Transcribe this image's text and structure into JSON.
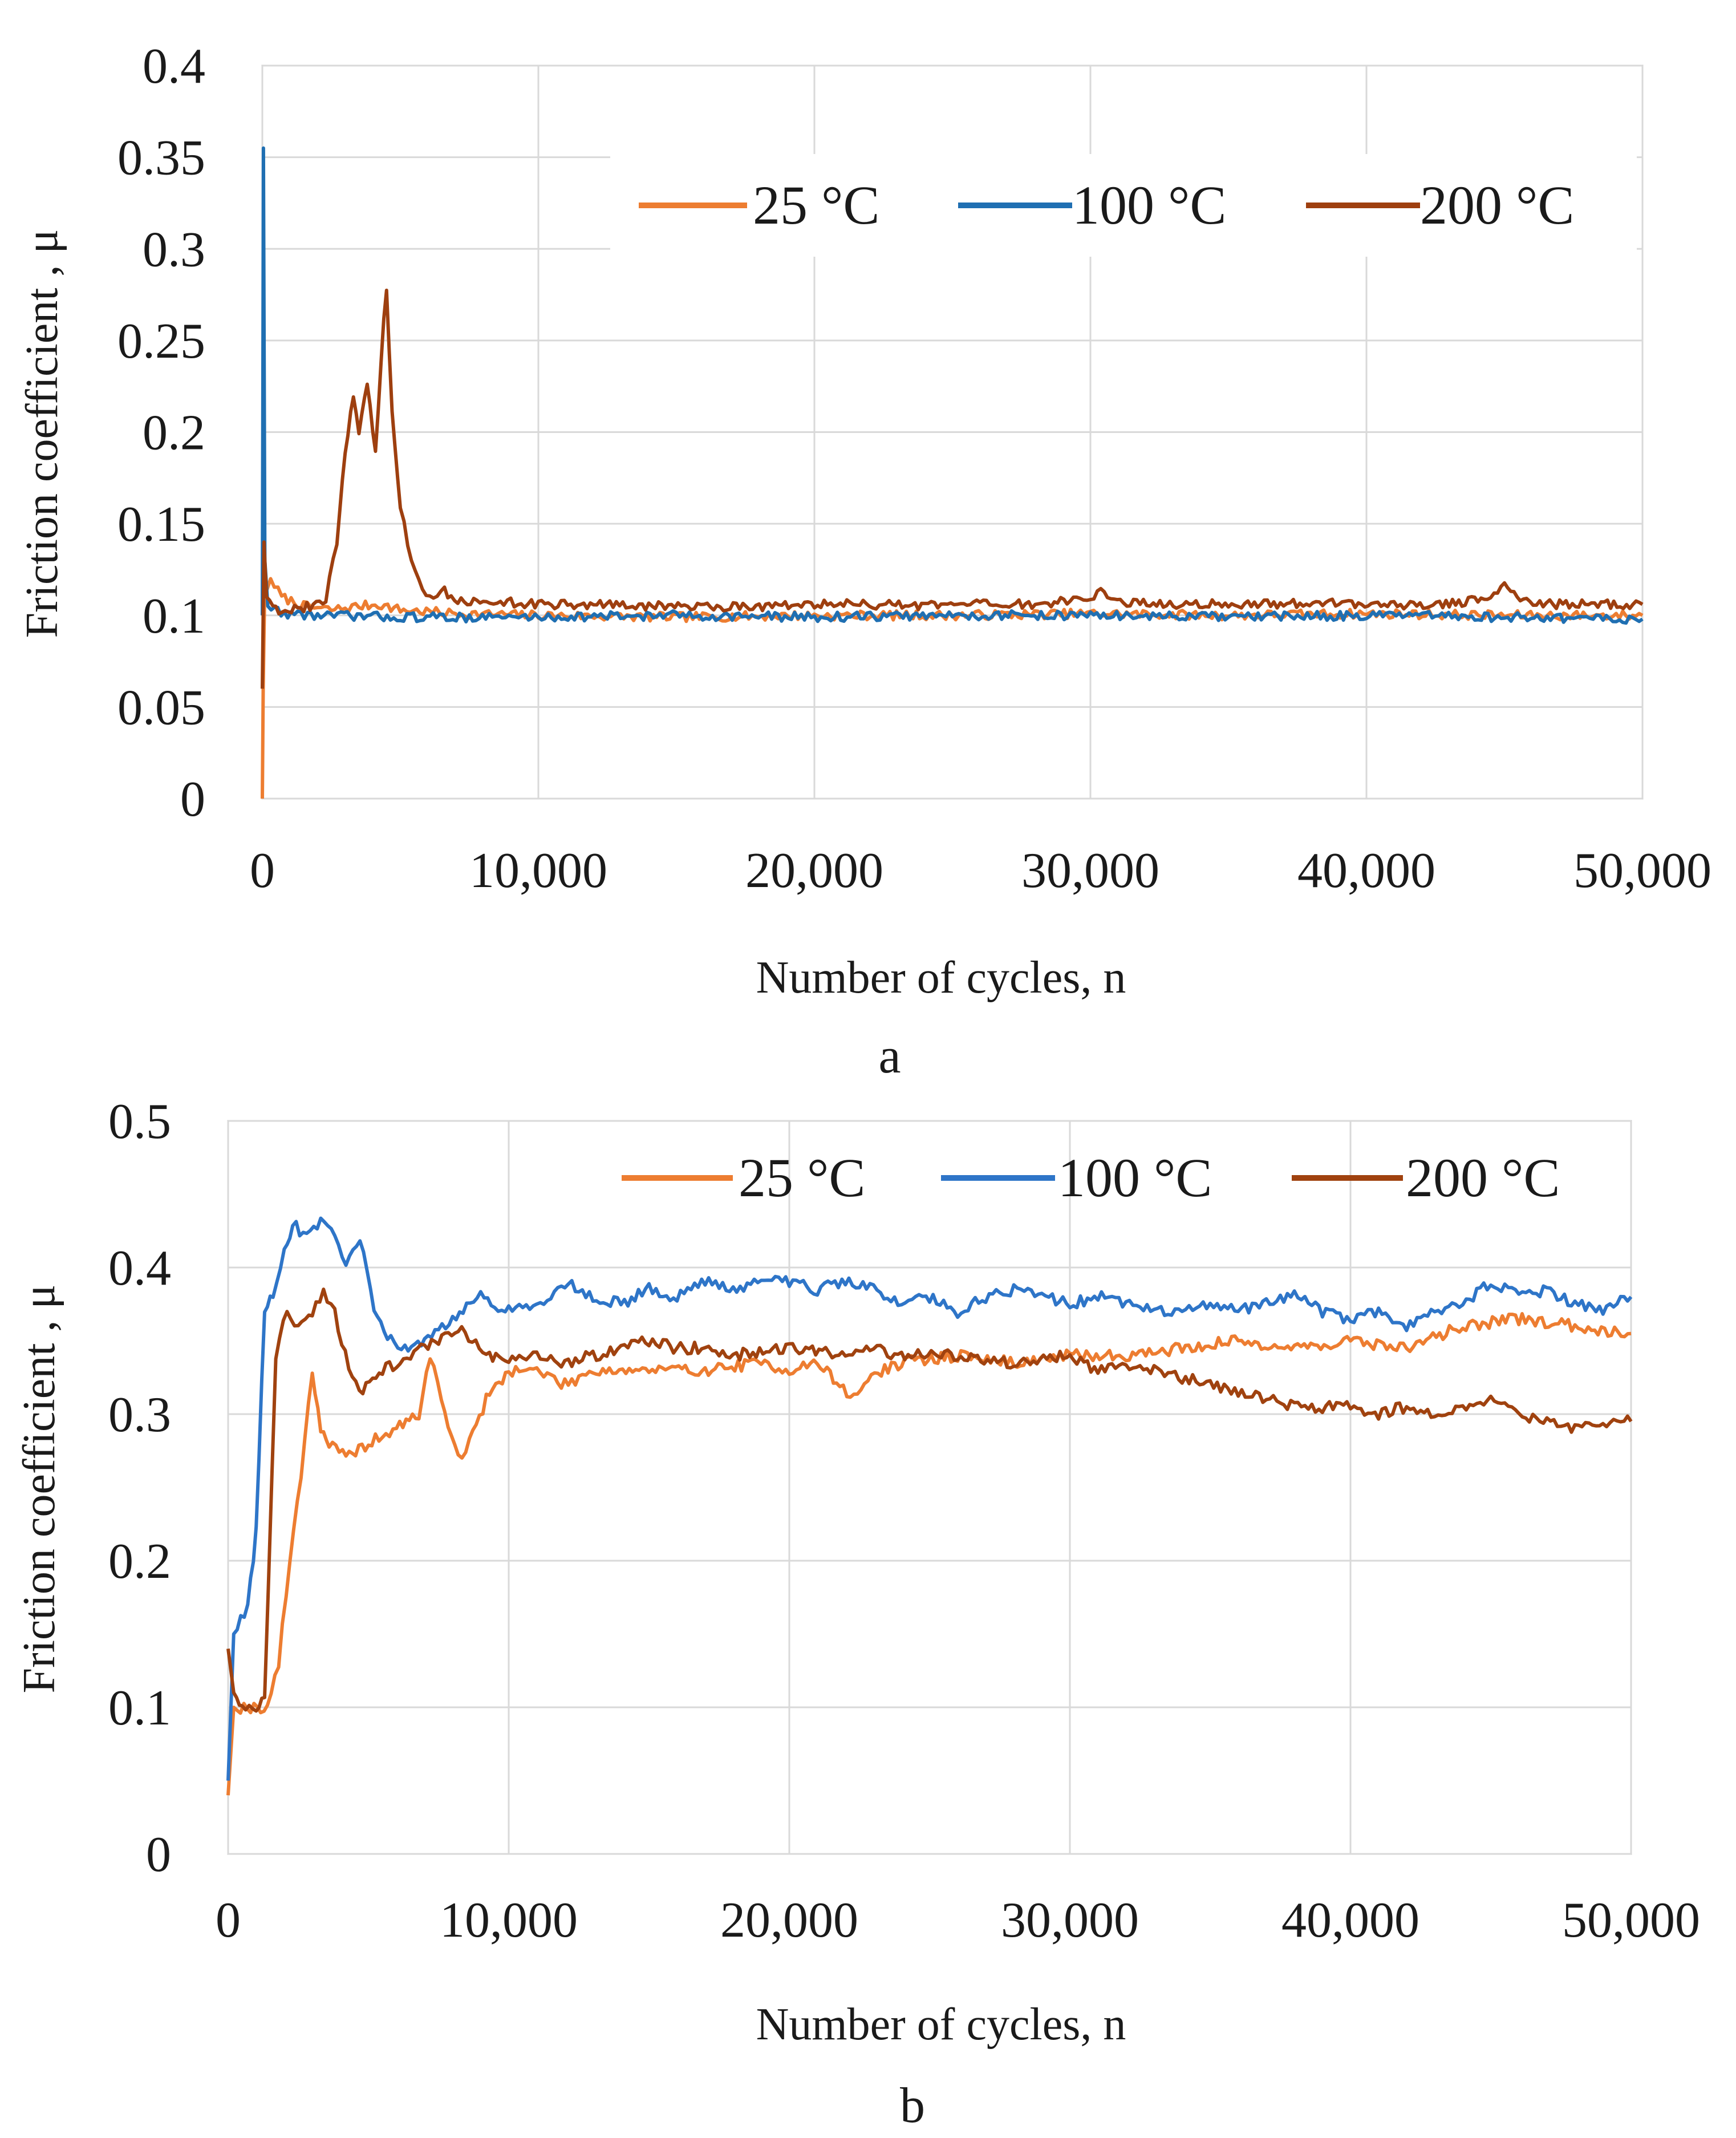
{
  "chart_data": [
    {
      "panel_label": "a",
      "type": "line",
      "xlabel": "Number of cycles, n",
      "ylabel": "Friction coefficient , μ",
      "xlim": [
        0,
        50000
      ],
      "ylim": [
        0,
        0.4
      ],
      "grid": true,
      "legend_position": "top-right",
      "x_ticks": [
        0,
        10000,
        20000,
        30000,
        40000,
        50000
      ],
      "x_tick_labels": [
        "0",
        "10,000",
        "20,000",
        "30,000",
        "40,000",
        "50,000"
      ],
      "y_ticks": [
        0,
        0.05,
        0.1,
        0.15,
        0.2,
        0.25,
        0.3,
        0.35,
        0.4
      ],
      "y_tick_labels": [
        "0",
        "0.05",
        "0.1",
        "0.15",
        "0.2",
        "0.25",
        "0.3",
        "0.35",
        "0.4"
      ],
      "series": [
        {
          "name": "25 °C",
          "color": "#ED7D31",
          "points": [
            [
              0,
              0.0
            ],
            [
              30,
              0.06
            ],
            [
              80,
              0.11
            ],
            [
              300,
              0.12
            ],
            [
              700,
              0.11
            ],
            [
              1500,
              0.105
            ],
            [
              2500,
              0.103
            ],
            [
              3500,
              0.105
            ],
            [
              4200,
              0.106
            ],
            [
              5000,
              0.103
            ],
            [
              7000,
              0.101
            ],
            [
              10000,
              0.1
            ],
            [
              15000,
              0.099
            ],
            [
              20000,
              0.1
            ],
            [
              25000,
              0.1
            ],
            [
              30000,
              0.101
            ],
            [
              35000,
              0.1
            ],
            [
              40000,
              0.101
            ],
            [
              45000,
              0.1
            ],
            [
              50000,
              0.1
            ]
          ]
        },
        {
          "name": "100 °C",
          "color": "#1F6FB2",
          "points": [
            [
              0,
              0.1
            ],
            [
              40,
              0.355
            ],
            [
              90,
              0.13
            ],
            [
              200,
              0.105
            ],
            [
              800,
              0.101
            ],
            [
              2000,
              0.1
            ],
            [
              5000,
              0.099
            ],
            [
              10000,
              0.099
            ],
            [
              15000,
              0.1
            ],
            [
              20000,
              0.099
            ],
            [
              25000,
              0.1
            ],
            [
              30000,
              0.1
            ],
            [
              35000,
              0.099
            ],
            [
              40000,
              0.1
            ],
            [
              45000,
              0.099
            ],
            [
              50000,
              0.098
            ]
          ]
        },
        {
          "name": "200 °C",
          "color": "#9E3F0F",
          "points": [
            [
              0,
              0.06
            ],
            [
              60,
              0.14
            ],
            [
              150,
              0.11
            ],
            [
              600,
              0.103
            ],
            [
              1500,
              0.104
            ],
            [
              2300,
              0.108
            ],
            [
              2700,
              0.14
            ],
            [
              3000,
              0.19
            ],
            [
              3300,
              0.22
            ],
            [
              3500,
              0.2
            ],
            [
              3800,
              0.225
            ],
            [
              4100,
              0.19
            ],
            [
              4400,
              0.26
            ],
            [
              4500,
              0.275
            ],
            [
              4700,
              0.21
            ],
            [
              5000,
              0.16
            ],
            [
              5400,
              0.13
            ],
            [
              5800,
              0.112
            ],
            [
              6200,
              0.11
            ],
            [
              6600,
              0.113
            ],
            [
              7200,
              0.108
            ],
            [
              8000,
              0.107
            ],
            [
              9000,
              0.107
            ],
            [
              10000,
              0.106
            ],
            [
              12000,
              0.106
            ],
            [
              14000,
              0.105
            ],
            [
              16000,
              0.105
            ],
            [
              18000,
              0.105
            ],
            [
              20000,
              0.106
            ],
            [
              22000,
              0.106
            ],
            [
              24000,
              0.105
            ],
            [
              26000,
              0.106
            ],
            [
              28000,
              0.106
            ],
            [
              29500,
              0.108
            ],
            [
              30500,
              0.113
            ],
            [
              31200,
              0.107
            ],
            [
              33000,
              0.106
            ],
            [
              35000,
              0.106
            ],
            [
              37000,
              0.106
            ],
            [
              39000,
              0.107
            ],
            [
              41000,
              0.106
            ],
            [
              43000,
              0.106
            ],
            [
              44500,
              0.11
            ],
            [
              45000,
              0.116
            ],
            [
              45800,
              0.108
            ],
            [
              47000,
              0.106
            ],
            [
              48500,
              0.106
            ],
            [
              50000,
              0.106
            ]
          ]
        }
      ]
    },
    {
      "panel_label": "b",
      "type": "line",
      "xlabel": "Number of cycles, n",
      "ylabel": "Friction coefficient , μ",
      "xlim": [
        0,
        50000
      ],
      "ylim": [
        0,
        0.5
      ],
      "grid": true,
      "legend_position": "top-right",
      "x_ticks": [
        0,
        10000,
        20000,
        30000,
        40000,
        50000
      ],
      "x_tick_labels": [
        "0",
        "10,000",
        "20,000",
        "30,000",
        "40,000",
        "50,000"
      ],
      "y_ticks": [
        0,
        0.1,
        0.2,
        0.3,
        0.4,
        0.5
      ],
      "y_tick_labels": [
        "0",
        "0.1",
        "0.2",
        "0.3",
        "0.4",
        "0.5"
      ],
      "series": [
        {
          "name": "25 °C",
          "color": "#ED7D31",
          "points": [
            [
              0,
              0.04
            ],
            [
              200,
              0.1
            ],
            [
              800,
              0.1
            ],
            [
              1400,
              0.1
            ],
            [
              1800,
              0.13
            ],
            [
              2200,
              0.2
            ],
            [
              2600,
              0.26
            ],
            [
              3000,
              0.33
            ],
            [
              3300,
              0.29
            ],
            [
              3600,
              0.28
            ],
            [
              4200,
              0.27
            ],
            [
              5000,
              0.28
            ],
            [
              6000,
              0.29
            ],
            [
              6800,
              0.3
            ],
            [
              7200,
              0.34
            ],
            [
              7600,
              0.31
            ],
            [
              8200,
              0.27
            ],
            [
              8600,
              0.28
            ],
            [
              9200,
              0.31
            ],
            [
              10000,
              0.33
            ],
            [
              11000,
              0.33
            ],
            [
              12000,
              0.32
            ],
            [
              13000,
              0.33
            ],
            [
              15000,
              0.33
            ],
            [
              17000,
              0.33
            ],
            [
              19000,
              0.335
            ],
            [
              20000,
              0.33
            ],
            [
              21000,
              0.335
            ],
            [
              21800,
              0.32
            ],
            [
              22300,
              0.31
            ],
            [
              22800,
              0.325
            ],
            [
              24000,
              0.335
            ],
            [
              26000,
              0.34
            ],
            [
              28000,
              0.335
            ],
            [
              30000,
              0.34
            ],
            [
              32000,
              0.34
            ],
            [
              34000,
              0.345
            ],
            [
              36000,
              0.35
            ],
            [
              38000,
              0.345
            ],
            [
              40000,
              0.35
            ],
            [
              42000,
              0.345
            ],
            [
              44000,
              0.36
            ],
            [
              46000,
              0.365
            ],
            [
              48000,
              0.36
            ],
            [
              50000,
              0.355
            ]
          ]
        },
        {
          "name": "100 °C",
          "color": "#2E75C8",
          "points": [
            [
              0,
              0.05
            ],
            [
              200,
              0.15
            ],
            [
              700,
              0.17
            ],
            [
              1000,
              0.22
            ],
            [
              1300,
              0.37
            ],
            [
              1600,
              0.38
            ],
            [
              2000,
              0.41
            ],
            [
              2300,
              0.43
            ],
            [
              2800,
              0.42
            ],
            [
              3300,
              0.43
            ],
            [
              3800,
              0.42
            ],
            [
              4200,
              0.4
            ],
            [
              4700,
              0.42
            ],
            [
              5200,
              0.37
            ],
            [
              5800,
              0.35
            ],
            [
              6300,
              0.345
            ],
            [
              7000,
              0.35
            ],
            [
              8000,
              0.365
            ],
            [
              9000,
              0.38
            ],
            [
              10000,
              0.37
            ],
            [
              11000,
              0.375
            ],
            [
              12000,
              0.39
            ],
            [
              13000,
              0.38
            ],
            [
              14000,
              0.375
            ],
            [
              15000,
              0.385
            ],
            [
              16000,
              0.38
            ],
            [
              17000,
              0.39
            ],
            [
              18000,
              0.385
            ],
            [
              19000,
              0.39
            ],
            [
              20000,
              0.39
            ],
            [
              21000,
              0.385
            ],
            [
              22000,
              0.39
            ],
            [
              23000,
              0.385
            ],
            [
              24000,
              0.375
            ],
            [
              25000,
              0.38
            ],
            [
              26000,
              0.37
            ],
            [
              27000,
              0.38
            ],
            [
              28000,
              0.385
            ],
            [
              29000,
              0.38
            ],
            [
              30000,
              0.375
            ],
            [
              31000,
              0.38
            ],
            [
              32000,
              0.375
            ],
            [
              33000,
              0.37
            ],
            [
              34000,
              0.37
            ],
            [
              35000,
              0.375
            ],
            [
              36000,
              0.37
            ],
            [
              37000,
              0.375
            ],
            [
              38000,
              0.38
            ],
            [
              39000,
              0.37
            ],
            [
              40000,
              0.365
            ],
            [
              41000,
              0.37
            ],
            [
              42000,
              0.36
            ],
            [
              43000,
              0.37
            ],
            [
              44000,
              0.375
            ],
            [
              45000,
              0.39
            ],
            [
              46000,
              0.38
            ],
            [
              47000,
              0.385
            ],
            [
              48000,
              0.375
            ],
            [
              49000,
              0.37
            ],
            [
              50000,
              0.38
            ]
          ]
        },
        {
          "name": "200 °C",
          "color": "#A0420F",
          "points": [
            [
              0,
              0.14
            ],
            [
              200,
              0.11
            ],
            [
              500,
              0.1
            ],
            [
              1000,
              0.1
            ],
            [
              1300,
              0.105
            ],
            [
              1700,
              0.34
            ],
            [
              2100,
              0.37
            ],
            [
              2500,
              0.36
            ],
            [
              3000,
              0.37
            ],
            [
              3400,
              0.385
            ],
            [
              3800,
              0.37
            ],
            [
              4300,
              0.33
            ],
            [
              4800,
              0.315
            ],
            [
              5500,
              0.33
            ],
            [
              6500,
              0.34
            ],
            [
              7500,
              0.35
            ],
            [
              8200,
              0.36
            ],
            [
              8700,
              0.35
            ],
            [
              9200,
              0.34
            ],
            [
              10000,
              0.335
            ],
            [
              11000,
              0.34
            ],
            [
              12000,
              0.335
            ],
            [
              13000,
              0.34
            ],
            [
              14000,
              0.345
            ],
            [
              15000,
              0.35
            ],
            [
              16000,
              0.345
            ],
            [
              17000,
              0.345
            ],
            [
              18000,
              0.34
            ],
            [
              20000,
              0.345
            ],
            [
              22000,
              0.34
            ],
            [
              23000,
              0.345
            ],
            [
              24000,
              0.34
            ],
            [
              26000,
              0.34
            ],
            [
              28000,
              0.335
            ],
            [
              30000,
              0.34
            ],
            [
              31000,
              0.33
            ],
            [
              32000,
              0.335
            ],
            [
              33000,
              0.33
            ],
            [
              34000,
              0.325
            ],
            [
              35000,
              0.32
            ],
            [
              36000,
              0.315
            ],
            [
              37000,
              0.31
            ],
            [
              38000,
              0.305
            ],
            [
              39000,
              0.305
            ],
            [
              40000,
              0.305
            ],
            [
              41000,
              0.3
            ],
            [
              42000,
              0.305
            ],
            [
              43000,
              0.3
            ],
            [
              44000,
              0.305
            ],
            [
              45000,
              0.31
            ],
            [
              46000,
              0.3
            ],
            [
              47000,
              0.295
            ],
            [
              48000,
              0.29
            ],
            [
              49000,
              0.295
            ],
            [
              50000,
              0.295
            ]
          ]
        }
      ]
    }
  ]
}
